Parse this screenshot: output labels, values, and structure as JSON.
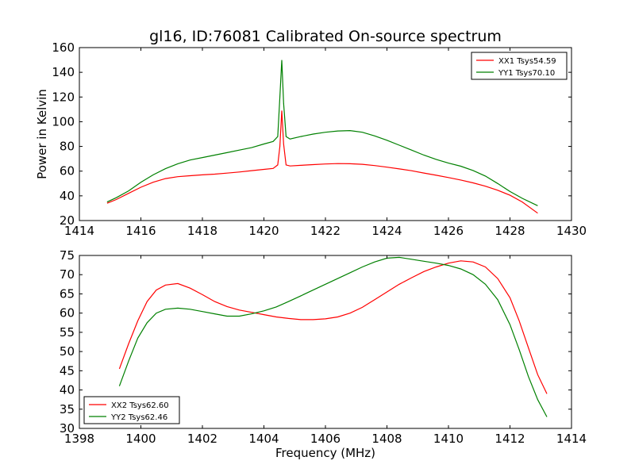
{
  "chart_data": [
    {
      "type": "line",
      "title": "gl16, ID:76081 Calibrated On-source spectrum",
      "xlabel": "",
      "ylabel": "Power in Kelvin",
      "xlim": [
        1414,
        1430
      ],
      "ylim": [
        20,
        160
      ],
      "xticks": [
        1414,
        1416,
        1418,
        1420,
        1422,
        1424,
        1426,
        1428,
        1430
      ],
      "yticks": [
        20,
        40,
        60,
        80,
        100,
        120,
        140,
        160
      ],
      "legend_position": "top-right",
      "grid": false,
      "series": [
        {
          "name": "XX1 Tsys54.59",
          "color": "#ff0000",
          "points": [
            [
              1414.9,
              34
            ],
            [
              1415.2,
              37
            ],
            [
              1415.6,
              42
            ],
            [
              1416.0,
              47
            ],
            [
              1416.4,
              51
            ],
            [
              1416.8,
              54
            ],
            [
              1417.2,
              55.5
            ],
            [
              1417.6,
              56.3
            ],
            [
              1418.0,
              57
            ],
            [
              1418.4,
              57.6
            ],
            [
              1418.8,
              58.4
            ],
            [
              1419.2,
              59.3
            ],
            [
              1419.6,
              60.4
            ],
            [
              1420.0,
              61.4
            ],
            [
              1420.3,
              62.2
            ],
            [
              1420.45,
              65
            ],
            [
              1420.52,
              80
            ],
            [
              1420.58,
              109
            ],
            [
              1420.64,
              82
            ],
            [
              1420.72,
              65
            ],
            [
              1420.85,
              64.2
            ],
            [
              1421.2,
              64.7
            ],
            [
              1421.6,
              65.3
            ],
            [
              1422.0,
              65.8
            ],
            [
              1422.4,
              66.1
            ],
            [
              1422.8,
              66
            ],
            [
              1423.2,
              65.5
            ],
            [
              1423.6,
              64.5
            ],
            [
              1424.0,
              63.2
            ],
            [
              1424.4,
              61.8
            ],
            [
              1424.8,
              60.3
            ],
            [
              1425.2,
              58.5
            ],
            [
              1425.6,
              56.7
            ],
            [
              1426.0,
              54.8
            ],
            [
              1426.4,
              52.8
            ],
            [
              1426.8,
              50.5
            ],
            [
              1427.2,
              47.8
            ],
            [
              1427.6,
              44.5
            ],
            [
              1428.0,
              40.5
            ],
            [
              1428.4,
              35
            ],
            [
              1428.9,
              26
            ]
          ]
        },
        {
          "name": "YY1 Tsys70.10",
          "color": "#008000",
          "points": [
            [
              1414.9,
              35
            ],
            [
              1415.2,
              38.5
            ],
            [
              1415.6,
              44
            ],
            [
              1416.0,
              51
            ],
            [
              1416.4,
              57
            ],
            [
              1416.8,
              62
            ],
            [
              1417.2,
              66
            ],
            [
              1417.6,
              69
            ],
            [
              1418.0,
              71
            ],
            [
              1418.4,
              73
            ],
            [
              1418.8,
              75
            ],
            [
              1419.2,
              77
            ],
            [
              1419.6,
              79
            ],
            [
              1420.0,
              82
            ],
            [
              1420.3,
              84
            ],
            [
              1420.45,
              88
            ],
            [
              1420.52,
              120
            ],
            [
              1420.58,
              150
            ],
            [
              1420.64,
              115
            ],
            [
              1420.72,
              88
            ],
            [
              1420.85,
              86
            ],
            [
              1421.2,
              88
            ],
            [
              1421.6,
              90
            ],
            [
              1422.0,
              91.5
            ],
            [
              1422.4,
              92.5
            ],
            [
              1422.8,
              92.8
            ],
            [
              1423.2,
              91.5
            ],
            [
              1423.6,
              88.5
            ],
            [
              1424.0,
              85
            ],
            [
              1424.4,
              81
            ],
            [
              1424.8,
              77
            ],
            [
              1425.2,
              73
            ],
            [
              1425.6,
              69.5
            ],
            [
              1426.0,
              66.5
            ],
            [
              1426.4,
              64
            ],
            [
              1426.8,
              60.5
            ],
            [
              1427.2,
              56
            ],
            [
              1427.6,
              50
            ],
            [
              1428.0,
              43.5
            ],
            [
              1428.4,
              38
            ],
            [
              1428.9,
              32
            ]
          ]
        }
      ]
    },
    {
      "type": "line",
      "title": "",
      "xlabel": "Frequency (MHz)",
      "ylabel": "",
      "xlim": [
        1398,
        1414
      ],
      "ylim": [
        30,
        75
      ],
      "xticks": [
        1398,
        1400,
        1402,
        1404,
        1406,
        1408,
        1410,
        1412,
        1414
      ],
      "yticks": [
        30,
        35,
        40,
        45,
        50,
        55,
        60,
        65,
        70,
        75
      ],
      "legend_position": "bottom-left",
      "grid": false,
      "series": [
        {
          "name": "XX2 Tsys62.60",
          "color": "#ff0000",
          "points": [
            [
              1399.3,
              45.5
            ],
            [
              1399.6,
              52
            ],
            [
              1399.9,
              58
            ],
            [
              1400.2,
              63
            ],
            [
              1400.5,
              66
            ],
            [
              1400.8,
              67.3
            ],
            [
              1401.2,
              67.7
            ],
            [
              1401.6,
              66.5
            ],
            [
              1402.0,
              64.8
            ],
            [
              1402.4,
              63
            ],
            [
              1402.8,
              61.7
            ],
            [
              1403.2,
              60.8
            ],
            [
              1403.6,
              60.2
            ],
            [
              1404.0,
              59.6
            ],
            [
              1404.4,
              59
            ],
            [
              1404.8,
              58.6
            ],
            [
              1405.2,
              58.3
            ],
            [
              1405.6,
              58.3
            ],
            [
              1406.0,
              58.5
            ],
            [
              1406.4,
              59
            ],
            [
              1406.8,
              60
            ],
            [
              1407.2,
              61.5
            ],
            [
              1407.6,
              63.5
            ],
            [
              1408.0,
              65.5
            ],
            [
              1408.4,
              67.5
            ],
            [
              1408.8,
              69.2
            ],
            [
              1409.2,
              70.8
            ],
            [
              1409.6,
              72
            ],
            [
              1410.0,
              73
            ],
            [
              1410.4,
              73.6
            ],
            [
              1410.8,
              73.3
            ],
            [
              1411.2,
              72
            ],
            [
              1411.6,
              69
            ],
            [
              1412.0,
              64
            ],
            [
              1412.3,
              58
            ],
            [
              1412.6,
              51
            ],
            [
              1412.9,
              44
            ],
            [
              1413.2,
              39
            ]
          ]
        },
        {
          "name": "YY2 Tsys62.46",
          "color": "#008000",
          "points": [
            [
              1399.3,
              41
            ],
            [
              1399.6,
              47.5
            ],
            [
              1399.9,
              53.5
            ],
            [
              1400.2,
              57.5
            ],
            [
              1400.5,
              60
            ],
            [
              1400.8,
              61
            ],
            [
              1401.2,
              61.3
            ],
            [
              1401.6,
              61
            ],
            [
              1402.0,
              60.4
            ],
            [
              1402.4,
              59.8
            ],
            [
              1402.8,
              59.2
            ],
            [
              1403.2,
              59.2
            ],
            [
              1403.6,
              59.8
            ],
            [
              1404.0,
              60.6
            ],
            [
              1404.4,
              61.6
            ],
            [
              1404.8,
              63
            ],
            [
              1405.2,
              64.5
            ],
            [
              1405.6,
              66
            ],
            [
              1406.0,
              67.5
            ],
            [
              1406.4,
              69
            ],
            [
              1406.8,
              70.5
            ],
            [
              1407.2,
              72
            ],
            [
              1407.6,
              73.3
            ],
            [
              1408.0,
              74.3
            ],
            [
              1408.4,
              74.5
            ],
            [
              1408.8,
              74
            ],
            [
              1409.2,
              73.5
            ],
            [
              1409.6,
              73
            ],
            [
              1410.0,
              72.4
            ],
            [
              1410.4,
              71.5
            ],
            [
              1410.8,
              70
            ],
            [
              1411.2,
              67.5
            ],
            [
              1411.6,
              63.5
            ],
            [
              1412.0,
              57
            ],
            [
              1412.3,
              50.5
            ],
            [
              1412.6,
              43.5
            ],
            [
              1412.9,
              37.5
            ],
            [
              1413.2,
              33
            ]
          ]
        }
      ]
    }
  ]
}
